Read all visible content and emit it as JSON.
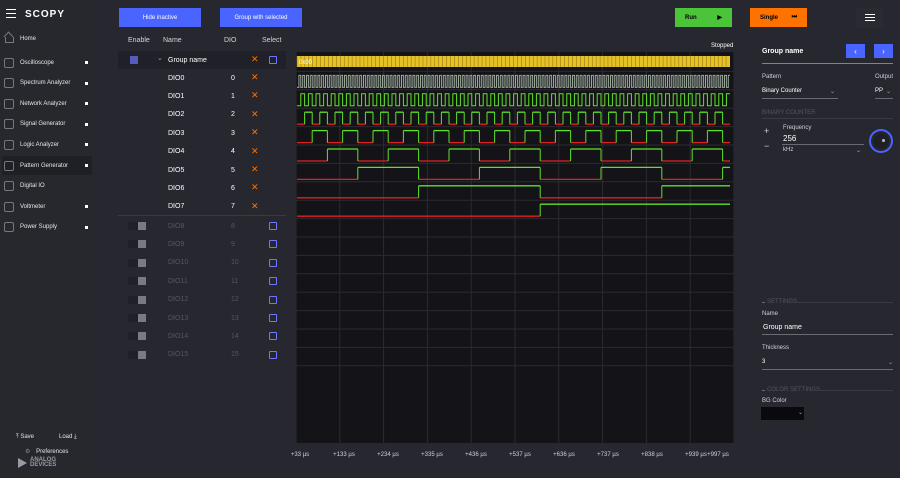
{
  "app": {
    "logo": "SCOPY"
  },
  "nav": {
    "home": "Home",
    "items": [
      {
        "label": "Oscilloscope",
        "icon": "oscilloscope-icon"
      },
      {
        "label": "Spectrum Analyzer",
        "icon": "spectrum-icon"
      },
      {
        "label": "Network Analyzer",
        "icon": "network-icon"
      },
      {
        "label": "Signal Generator",
        "icon": "signal-generator-icon"
      },
      {
        "label": "Logic Analyzer",
        "icon": "logic-analyzer-icon"
      },
      {
        "label": "Pattern Generator",
        "icon": "pattern-generator-icon"
      },
      {
        "label": "Digital IO",
        "icon": "digital-io-icon"
      },
      {
        "label": "Voltmeter",
        "icon": "voltmeter-icon"
      },
      {
        "label": "Power Supply",
        "icon": "power-supply-icon"
      }
    ],
    "save": "Save",
    "load": "Load",
    "preferences": "Preferences",
    "vendor_line1": "ANALOG",
    "vendor_line2": "DEVICES"
  },
  "toolbar": {
    "hide_inactive": "Hide inactive",
    "group_with_selected": "Group with selected",
    "run": "Run",
    "single": "Single"
  },
  "channels": {
    "headers": {
      "enable": "Enable",
      "name": "Name",
      "dio": "DIO",
      "select": "Select"
    },
    "group_name": "Group name",
    "active": [
      {
        "name": "DIO0",
        "dio": "0"
      },
      {
        "name": "DIO1",
        "dio": "1"
      },
      {
        "name": "DIO2",
        "dio": "2"
      },
      {
        "name": "DIO3",
        "dio": "3"
      },
      {
        "name": "DIO4",
        "dio": "4"
      },
      {
        "name": "DIO5",
        "dio": "5"
      },
      {
        "name": "DIO6",
        "dio": "6"
      },
      {
        "name": "DIO7",
        "dio": "7"
      }
    ],
    "inactive": [
      {
        "name": "DIO8",
        "dio": "8"
      },
      {
        "name": "DIO9",
        "dio": "9"
      },
      {
        "name": "DIO10",
        "dio": "10"
      },
      {
        "name": "DIO11",
        "dio": "11"
      },
      {
        "name": "DIO12",
        "dio": "12"
      },
      {
        "name": "DIO13",
        "dio": "13"
      },
      {
        "name": "DIO14",
        "dio": "14"
      },
      {
        "name": "DIO15",
        "dio": "15"
      }
    ]
  },
  "plot": {
    "status": "Stopped",
    "bus_label": "0x00",
    "x_ticks": [
      "+33 µs",
      "+133 µs",
      "+234 µs",
      "+335 µs",
      "+436 µs",
      "+537 µs",
      "+636 µs",
      "+737 µs",
      "+838 µs",
      "+939 µs",
      "+997 µs"
    ],
    "colors": {
      "high": "#5fe02a",
      "low": "#e02020",
      "bus": "#e6c229",
      "grid": "#2a2a30"
    }
  },
  "panel": {
    "title": "Group name",
    "pattern_label": "Pattern",
    "output_label": "Output",
    "pattern_value": "Binary Counter",
    "output_value": "PP",
    "binary_counter_section": "BINARY COUNTER",
    "frequency_label": "Frequency",
    "frequency_value": "256",
    "frequency_unit": "kHz",
    "settings_section": "SETTINGS",
    "name_label": "Name",
    "name_value": "Group name",
    "thickness_label": "Thickness",
    "thickness_value": "3",
    "color_section": "COLOR SETTINGS",
    "bg_color_label": "BG Color",
    "bg_color": "#0a0a0e"
  }
}
